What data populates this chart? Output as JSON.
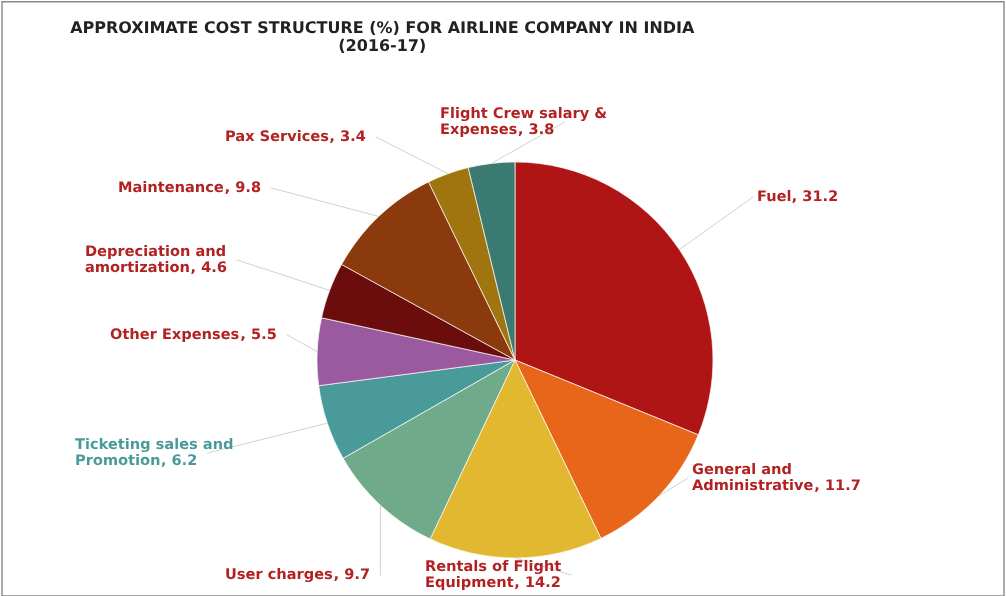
{
  "chart_data": {
    "type": "pie",
    "title": "APPROXIMATE COST STRUCTURE (%) FOR AIRLINE COMPANY IN INDIA\n(2016-17)",
    "categories": [
      "Fuel",
      "General and\nAdministrative",
      "Rentals of Flight\nEquipment",
      "User charges",
      "Ticketing sales and\nPromotion",
      "Other Expenses",
      "Depreciation and\namortization",
      "Maintenance",
      "Pax Services",
      "Flight Crew salary &\nExpenses"
    ],
    "values": [
      31.2,
      11.7,
      14.2,
      9.7,
      6.2,
      5.5,
      4.6,
      9.8,
      3.4,
      3.8
    ],
    "colors": [
      "#b01515",
      "#e8661a",
      "#e2b830",
      "#6fab8a",
      "#4a9a9a",
      "#9b59a0",
      "#6b0d0d",
      "#8b3a0e",
      "#a0740f",
      "#3a7a70"
    ],
    "value_labels": [
      ", 31.2",
      ", 11.7",
      ", 14.2",
      ", 9.7",
      ", 6.2",
      ", 5.5",
      ", 4.6",
      ", 9.8",
      ", 3.4",
      ", 3.8"
    ]
  }
}
